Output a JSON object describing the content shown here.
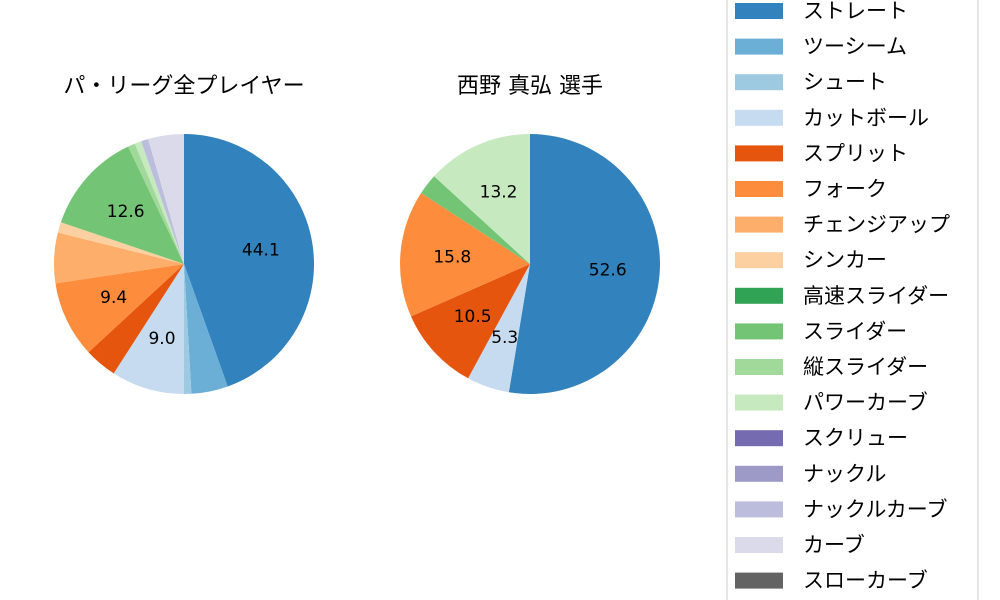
{
  "chart_data": [
    {
      "type": "pie",
      "title": "パ・リーグ全プレイヤー",
      "start_angle_deg": 90,
      "direction": "clockwise",
      "slices": [
        {
          "label": "ストレート",
          "value": 44.1,
          "color": "#3182bd",
          "show_label": true
        },
        {
          "label": "ツーシーム",
          "value": 4.5,
          "color": "#6baed6",
          "show_label": false
        },
        {
          "label": "シュート",
          "value": 0.9,
          "color": "#9ecae1",
          "show_label": false
        },
        {
          "label": "カットボール",
          "value": 9.0,
          "color": "#c6dbef",
          "show_label": true
        },
        {
          "label": "スプリット",
          "value": 4.0,
          "color": "#e6550d",
          "show_label": false
        },
        {
          "label": "フォーク",
          "value": 9.4,
          "color": "#fd8d3c",
          "show_label": true
        },
        {
          "label": "チェンジアップ",
          "value": 6.2,
          "color": "#fdae6b",
          "show_label": false
        },
        {
          "label": "シンカー",
          "value": 1.3,
          "color": "#fdd0a2",
          "show_label": false
        },
        {
          "label": "高速スライダー",
          "value": 0.0,
          "color": "#31a354",
          "show_label": false
        },
        {
          "label": "スライダー",
          "value": 12.6,
          "color": "#74c476",
          "show_label": true
        },
        {
          "label": "縦スライダー",
          "value": 0.9,
          "color": "#a1d99b",
          "show_label": false
        },
        {
          "label": "パワーカーブ",
          "value": 0.8,
          "color": "#c7e9c0",
          "show_label": false
        },
        {
          "label": "スクリュー",
          "value": 0.0,
          "color": "#756bb1",
          "show_label": false
        },
        {
          "label": "ナックル",
          "value": 0.0,
          "color": "#9e9ac8",
          "show_label": false
        },
        {
          "label": "ナックルカーブ",
          "value": 0.9,
          "color": "#bcbddc",
          "show_label": false
        },
        {
          "label": "カーブ",
          "value": 4.4,
          "color": "#dadaeb",
          "show_label": false
        },
        {
          "label": "スローカーブ",
          "value": 0.0,
          "color": "#636363",
          "show_label": false
        }
      ]
    },
    {
      "type": "pie",
      "title": "西野 真弘  選手",
      "start_angle_deg": 90,
      "direction": "clockwise",
      "slices": [
        {
          "label": "ストレート",
          "value": 52.6,
          "color": "#3182bd",
          "show_label": true
        },
        {
          "label": "カットボール",
          "value": 5.3,
          "color": "#c6dbef",
          "show_label": true
        },
        {
          "label": "スプリット",
          "value": 10.5,
          "color": "#e6550d",
          "show_label": true
        },
        {
          "label": "フォーク",
          "value": 15.8,
          "color": "#fd8d3c",
          "show_label": true
        },
        {
          "label": "スライダー",
          "value": 2.6,
          "color": "#74c476",
          "show_label": false
        },
        {
          "label": "パワーカーブ",
          "value": 13.2,
          "color": "#c7e9c0",
          "show_label": true
        }
      ]
    }
  ],
  "legend": {
    "placement": "right",
    "items": [
      {
        "label": "ストレート",
        "color": "#3182bd"
      },
      {
        "label": "ツーシーム",
        "color": "#6baed6"
      },
      {
        "label": "シュート",
        "color": "#9ecae1"
      },
      {
        "label": "カットボール",
        "color": "#c6dbef"
      },
      {
        "label": "スプリット",
        "color": "#e6550d"
      },
      {
        "label": "フォーク",
        "color": "#fd8d3c"
      },
      {
        "label": "チェンジアップ",
        "color": "#fdae6b"
      },
      {
        "label": "シンカー",
        "color": "#fdd0a2"
      },
      {
        "label": "高速スライダー",
        "color": "#31a354"
      },
      {
        "label": "スライダー",
        "color": "#74c476"
      },
      {
        "label": "縦スライダー",
        "color": "#a1d99b"
      },
      {
        "label": "パワーカーブ",
        "color": "#c7e9c0"
      },
      {
        "label": "スクリュー",
        "color": "#756bb1"
      },
      {
        "label": "ナックル",
        "color": "#9e9ac8"
      },
      {
        "label": "ナックルカーブ",
        "color": "#bcbddc"
      },
      {
        "label": "カーブ",
        "color": "#dadaeb"
      },
      {
        "label": "スローカーブ",
        "color": "#636363"
      }
    ]
  }
}
